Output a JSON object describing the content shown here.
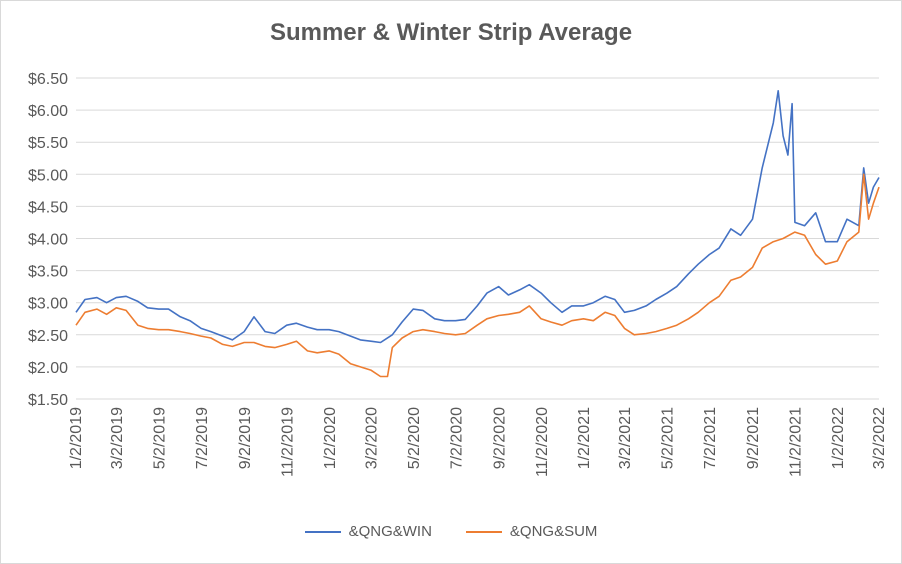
{
  "chart_data": {
    "type": "line",
    "title": "Summer & Winter Strip Average",
    "xlabel": "",
    "ylabel": "",
    "ylim": [
      1.5,
      6.5
    ],
    "yticks": [
      "$1.50",
      "$2.00",
      "$2.50",
      "$3.00",
      "$3.50",
      "$4.00",
      "$4.50",
      "$5.00",
      "$5.50",
      "$6.00",
      "$6.50"
    ],
    "xticks": [
      "1/2/2019",
      "3/2/2019",
      "5/2/2019",
      "7/2/2019",
      "9/2/2019",
      "11/2/2019",
      "1/2/2020",
      "3/2/2020",
      "5/2/2020",
      "7/2/2020",
      "9/2/2020",
      "11/2/2020",
      "1/2/2021",
      "3/2/2021",
      "5/2/2021",
      "7/2/2021",
      "9/2/2021",
      "11/2/2021",
      "1/2/2022",
      "3/2/2022"
    ],
    "xlim": [
      "2019-01-02",
      "2022-03-02"
    ],
    "grid": true,
    "legend": "bottom",
    "series": [
      {
        "name": "&QNG&WIN",
        "color": "#4472c4",
        "points": [
          [
            "2019-01-02",
            2.85
          ],
          [
            "2019-01-15",
            3.05
          ],
          [
            "2019-02-01",
            3.08
          ],
          [
            "2019-02-15",
            3.0
          ],
          [
            "2019-03-01",
            3.08
          ],
          [
            "2019-03-15",
            3.1
          ],
          [
            "2019-04-01",
            3.02
          ],
          [
            "2019-04-15",
            2.92
          ],
          [
            "2019-05-01",
            2.9
          ],
          [
            "2019-05-15",
            2.9
          ],
          [
            "2019-06-01",
            2.78
          ],
          [
            "2019-06-15",
            2.72
          ],
          [
            "2019-07-01",
            2.6
          ],
          [
            "2019-07-15",
            2.55
          ],
          [
            "2019-08-01",
            2.48
          ],
          [
            "2019-08-15",
            2.42
          ],
          [
            "2019-09-01",
            2.55
          ],
          [
            "2019-09-15",
            2.78
          ],
          [
            "2019-10-01",
            2.55
          ],
          [
            "2019-10-15",
            2.52
          ],
          [
            "2019-11-01",
            2.65
          ],
          [
            "2019-11-15",
            2.68
          ],
          [
            "2019-12-01",
            2.62
          ],
          [
            "2019-12-15",
            2.58
          ],
          [
            "2020-01-01",
            2.58
          ],
          [
            "2020-01-15",
            2.55
          ],
          [
            "2020-02-01",
            2.48
          ],
          [
            "2020-02-15",
            2.42
          ],
          [
            "2020-03-01",
            2.4
          ],
          [
            "2020-03-15",
            2.38
          ],
          [
            "2020-04-01",
            2.5
          ],
          [
            "2020-04-15",
            2.7
          ],
          [
            "2020-05-01",
            2.9
          ],
          [
            "2020-05-15",
            2.88
          ],
          [
            "2020-06-01",
            2.75
          ],
          [
            "2020-06-15",
            2.72
          ],
          [
            "2020-07-01",
            2.72
          ],
          [
            "2020-07-15",
            2.74
          ],
          [
            "2020-08-01",
            2.95
          ],
          [
            "2020-08-15",
            3.15
          ],
          [
            "2020-09-01",
            3.25
          ],
          [
            "2020-09-15",
            3.12
          ],
          [
            "2020-10-01",
            3.2
          ],
          [
            "2020-10-15",
            3.28
          ],
          [
            "2020-11-01",
            3.15
          ],
          [
            "2020-11-15",
            3.0
          ],
          [
            "2020-12-01",
            2.85
          ],
          [
            "2020-12-15",
            2.95
          ],
          [
            "2021-01-01",
            2.95
          ],
          [
            "2021-01-15",
            3.0
          ],
          [
            "2021-02-01",
            3.1
          ],
          [
            "2021-02-15",
            3.05
          ],
          [
            "2021-03-01",
            2.85
          ],
          [
            "2021-03-15",
            2.88
          ],
          [
            "2021-04-01",
            2.95
          ],
          [
            "2021-04-15",
            3.05
          ],
          [
            "2021-05-01",
            3.15
          ],
          [
            "2021-05-15",
            3.25
          ],
          [
            "2021-06-01",
            3.45
          ],
          [
            "2021-06-15",
            3.6
          ],
          [
            "2021-07-01",
            3.75
          ],
          [
            "2021-07-15",
            3.85
          ],
          [
            "2021-08-01",
            4.15
          ],
          [
            "2021-08-15",
            4.05
          ],
          [
            "2021-09-01",
            4.3
          ],
          [
            "2021-09-15",
            5.1
          ],
          [
            "2021-10-01",
            5.8
          ],
          [
            "2021-10-08",
            6.3
          ],
          [
            "2021-10-15",
            5.6
          ],
          [
            "2021-10-22",
            5.3
          ],
          [
            "2021-10-28",
            6.1
          ],
          [
            "2021-11-01",
            4.25
          ],
          [
            "2021-11-15",
            4.2
          ],
          [
            "2021-12-01",
            4.4
          ],
          [
            "2021-12-15",
            3.95
          ],
          [
            "2022-01-01",
            3.95
          ],
          [
            "2022-01-15",
            4.3
          ],
          [
            "2022-02-01",
            4.2
          ],
          [
            "2022-02-08",
            5.1
          ],
          [
            "2022-02-15",
            4.55
          ],
          [
            "2022-02-22",
            4.8
          ],
          [
            "2022-03-02",
            4.95
          ]
        ]
      },
      {
        "name": "&QNG&SUM",
        "color": "#ed7d31",
        "points": [
          [
            "2019-01-02",
            2.65
          ],
          [
            "2019-01-15",
            2.85
          ],
          [
            "2019-02-01",
            2.9
          ],
          [
            "2019-02-15",
            2.82
          ],
          [
            "2019-03-01",
            2.92
          ],
          [
            "2019-03-15",
            2.88
          ],
          [
            "2019-04-01",
            2.65
          ],
          [
            "2019-04-15",
            2.6
          ],
          [
            "2019-05-01",
            2.58
          ],
          [
            "2019-05-15",
            2.58
          ],
          [
            "2019-06-01",
            2.55
          ],
          [
            "2019-06-15",
            2.52
          ],
          [
            "2019-07-01",
            2.48
          ],
          [
            "2019-07-15",
            2.45
          ],
          [
            "2019-08-01",
            2.35
          ],
          [
            "2019-08-15",
            2.32
          ],
          [
            "2019-09-01",
            2.38
          ],
          [
            "2019-09-15",
            2.38
          ],
          [
            "2019-10-01",
            2.32
          ],
          [
            "2019-10-15",
            2.3
          ],
          [
            "2019-11-01",
            2.35
          ],
          [
            "2019-11-15",
            2.4
          ],
          [
            "2019-12-01",
            2.25
          ],
          [
            "2019-12-15",
            2.22
          ],
          [
            "2020-01-01",
            2.25
          ],
          [
            "2020-01-15",
            2.2
          ],
          [
            "2020-02-01",
            2.05
          ],
          [
            "2020-02-15",
            2.0
          ],
          [
            "2020-03-01",
            1.95
          ],
          [
            "2020-03-15",
            1.85
          ],
          [
            "2020-03-25",
            1.85
          ],
          [
            "2020-04-01",
            2.3
          ],
          [
            "2020-04-15",
            2.45
          ],
          [
            "2020-05-01",
            2.55
          ],
          [
            "2020-05-15",
            2.58
          ],
          [
            "2020-06-01",
            2.55
          ],
          [
            "2020-06-15",
            2.52
          ],
          [
            "2020-07-01",
            2.5
          ],
          [
            "2020-07-15",
            2.52
          ],
          [
            "2020-08-01",
            2.65
          ],
          [
            "2020-08-15",
            2.75
          ],
          [
            "2020-09-01",
            2.8
          ],
          [
            "2020-09-15",
            2.82
          ],
          [
            "2020-10-01",
            2.85
          ],
          [
            "2020-10-15",
            2.95
          ],
          [
            "2020-11-01",
            2.75
          ],
          [
            "2020-11-15",
            2.7
          ],
          [
            "2020-12-01",
            2.65
          ],
          [
            "2020-12-15",
            2.72
          ],
          [
            "2021-01-01",
            2.75
          ],
          [
            "2021-01-15",
            2.72
          ],
          [
            "2021-02-01",
            2.85
          ],
          [
            "2021-02-15",
            2.8
          ],
          [
            "2021-03-01",
            2.6
          ],
          [
            "2021-03-15",
            2.5
          ],
          [
            "2021-04-01",
            2.52
          ],
          [
            "2021-04-15",
            2.55
          ],
          [
            "2021-05-01",
            2.6
          ],
          [
            "2021-05-15",
            2.65
          ],
          [
            "2021-06-01",
            2.75
          ],
          [
            "2021-06-15",
            2.85
          ],
          [
            "2021-07-01",
            3.0
          ],
          [
            "2021-07-15",
            3.1
          ],
          [
            "2021-08-01",
            3.35
          ],
          [
            "2021-08-15",
            3.4
          ],
          [
            "2021-09-01",
            3.55
          ],
          [
            "2021-09-15",
            3.85
          ],
          [
            "2021-10-01",
            3.95
          ],
          [
            "2021-10-15",
            4.0
          ],
          [
            "2021-11-01",
            4.1
          ],
          [
            "2021-11-15",
            4.05
          ],
          [
            "2021-12-01",
            3.75
          ],
          [
            "2021-12-15",
            3.6
          ],
          [
            "2022-01-01",
            3.65
          ],
          [
            "2022-01-15",
            3.95
          ],
          [
            "2022-02-01",
            4.1
          ],
          [
            "2022-02-08",
            5.0
          ],
          [
            "2022-02-15",
            4.3
          ],
          [
            "2022-02-22",
            4.55
          ],
          [
            "2022-03-02",
            4.8
          ]
        ]
      }
    ]
  }
}
